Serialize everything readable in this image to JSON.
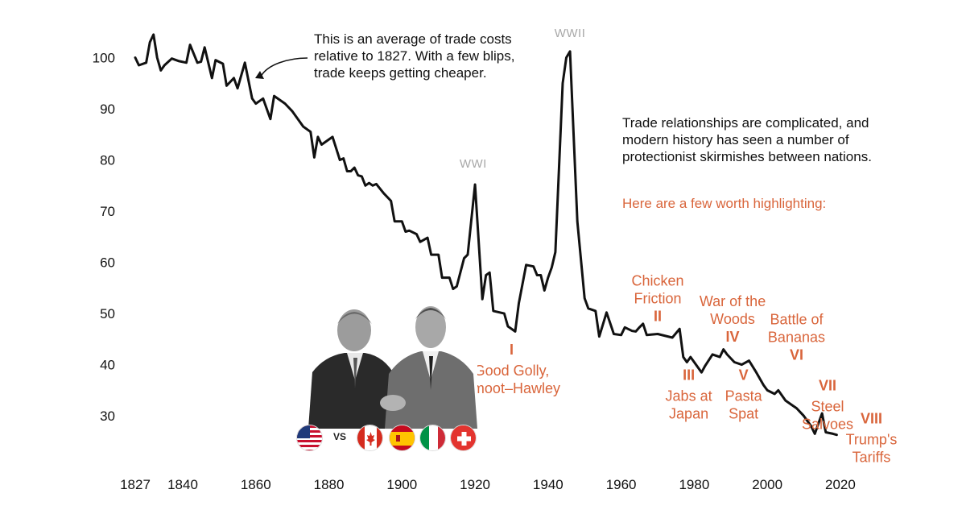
{
  "chart_data": {
    "type": "line",
    "x_ticks": [
      1827,
      1840,
      1860,
      1880,
      1900,
      1920,
      1940,
      1960,
      1980,
      2000,
      2020
    ],
    "y_ticks": [
      30,
      40,
      50,
      60,
      70,
      80,
      90,
      100
    ],
    "xlim": [
      1827,
      2022
    ],
    "ylim": [
      22,
      107
    ],
    "grid": false,
    "series": [
      {
        "values": [
          [
            1827,
            100
          ],
          [
            1828,
            98.5
          ],
          [
            1830,
            99
          ],
          [
            1831,
            103
          ],
          [
            1832,
            104.5
          ],
          [
            1833,
            100
          ],
          [
            1834,
            97.5
          ],
          [
            1835,
            98.5
          ],
          [
            1837,
            99.8
          ],
          [
            1839,
            99.3
          ],
          [
            1841,
            99
          ],
          [
            1842,
            102.5
          ],
          [
            1844,
            99
          ],
          [
            1845,
            99.2
          ],
          [
            1846,
            102
          ],
          [
            1848,
            96
          ],
          [
            1849,
            99.5
          ],
          [
            1851,
            98.8
          ],
          [
            1852,
            94.5
          ],
          [
            1854,
            96
          ],
          [
            1855,
            94
          ],
          [
            1857,
            99
          ],
          [
            1859,
            92
          ],
          [
            1860,
            91
          ],
          [
            1862,
            92
          ],
          [
            1864,
            88
          ],
          [
            1865,
            92.5
          ],
          [
            1868,
            91
          ],
          [
            1870,
            89.5
          ],
          [
            1873,
            86.5
          ],
          [
            1875,
            85.5
          ],
          [
            1876,
            80.5
          ],
          [
            1877,
            84.5
          ],
          [
            1878,
            83
          ],
          [
            1880,
            84
          ],
          [
            1881,
            84.5
          ],
          [
            1883,
            80
          ],
          [
            1884,
            80.3
          ],
          [
            1885,
            77.8
          ],
          [
            1886,
            77.8
          ],
          [
            1887,
            78.5
          ],
          [
            1888,
            77
          ],
          [
            1889,
            76.8
          ],
          [
            1890,
            75
          ],
          [
            1891,
            75.5
          ],
          [
            1892,
            75
          ],
          [
            1893,
            75.3
          ],
          [
            1895,
            73.5
          ],
          [
            1897,
            72
          ],
          [
            1898,
            68
          ],
          [
            1900,
            68
          ],
          [
            1901,
            66
          ],
          [
            1902,
            66.2
          ],
          [
            1904,
            65.5
          ],
          [
            1905,
            64
          ],
          [
            1907,
            64.8
          ],
          [
            1908,
            61.5
          ],
          [
            1910,
            61.5
          ],
          [
            1911,
            57
          ],
          [
            1913,
            57
          ],
          [
            1914,
            54.8
          ],
          [
            1915,
            55.3
          ],
          [
            1917,
            60.8
          ],
          [
            1918,
            61.5
          ],
          [
            1920,
            75.2
          ],
          [
            1922,
            52.8
          ],
          [
            1923,
            57.5
          ],
          [
            1924,
            58
          ],
          [
            1925,
            50.5
          ],
          [
            1928,
            50
          ],
          [
            1929,
            47.5
          ],
          [
            1931,
            46.5
          ],
          [
            1932,
            52
          ],
          [
            1934,
            59.5
          ],
          [
            1936,
            59.2
          ],
          [
            1937,
            57.5
          ],
          [
            1938,
            57.5
          ],
          [
            1939,
            54.5
          ],
          [
            1940,
            57
          ],
          [
            1941,
            59
          ],
          [
            1942,
            62
          ],
          [
            1944,
            95
          ],
          [
            1945,
            100
          ],
          [
            1946,
            101.2
          ],
          [
            1948,
            68
          ],
          [
            1950,
            53
          ],
          [
            1951,
            51
          ],
          [
            1953,
            50.5
          ],
          [
            1954,
            45.5
          ],
          [
            1956,
            50.2
          ],
          [
            1958,
            46
          ],
          [
            1960,
            45.8
          ],
          [
            1961,
            47.3
          ],
          [
            1963,
            46.6
          ],
          [
            1964,
            46.5
          ],
          [
            1965,
            47.3
          ],
          [
            1966,
            48
          ],
          [
            1967,
            45.8
          ],
          [
            1970,
            46
          ],
          [
            1974,
            45.3
          ],
          [
            1976,
            47
          ],
          [
            1977,
            41.5
          ],
          [
            1978,
            40.5
          ],
          [
            1979,
            41.5
          ],
          [
            1980,
            40.5
          ],
          [
            1982,
            38.5
          ],
          [
            1983,
            39.8
          ],
          [
            1985,
            42
          ],
          [
            1987,
            41.5
          ],
          [
            1988,
            43
          ],
          [
            1989,
            42
          ],
          [
            1991,
            40.5
          ],
          [
            1993,
            40
          ],
          [
            1995,
            40.8
          ],
          [
            1997,
            38.5
          ],
          [
            1999,
            36
          ],
          [
            2000,
            35
          ],
          [
            2002,
            34.3
          ],
          [
            2003,
            35
          ],
          [
            2005,
            33
          ],
          [
            2007,
            32
          ],
          [
            2008,
            31.5
          ],
          [
            2010,
            30
          ],
          [
            2012,
            28
          ],
          [
            2013,
            26.5
          ],
          [
            2015,
            30.5
          ],
          [
            2016,
            26.8
          ],
          [
            2018,
            26.5
          ],
          [
            2019,
            26.3
          ]
        ]
      }
    ],
    "war_labels": [
      {
        "label": "WWI",
        "x": 1919.5,
        "y": 78.5
      },
      {
        "label": "WWII",
        "x": 1946,
        "y": 104
      }
    ],
    "events": [
      {
        "numeral": "I",
        "text": [
          "Good Golly,",
          "Smoot–Hawley"
        ],
        "x": 1930,
        "y": 42
      },
      {
        "numeral": "II",
        "text": [
          "Chicken",
          "Friction"
        ],
        "x": 1970,
        "y": 48.5
      },
      {
        "numeral": "III",
        "text": [
          "Jabs at",
          "Japan"
        ],
        "x": 1978.5,
        "y": 37
      },
      {
        "numeral": "IV",
        "text": [
          "War of the",
          "Woods"
        ],
        "x": 1990.5,
        "y": 44.5
      },
      {
        "numeral": "V",
        "text": [
          "Pasta",
          "Spat"
        ],
        "x": 1993.5,
        "y": 37
      },
      {
        "numeral": "VI",
        "text": [
          "Battle of",
          "Bananas"
        ],
        "x": 2008,
        "y": 41
      },
      {
        "numeral": "VII",
        "text": [
          "Steel",
          "Salvoes"
        ],
        "x": 2016.5,
        "y": 35
      },
      {
        "numeral": "VIII",
        "text": [
          "Trump's",
          "Tariffs"
        ],
        "x": 2028.5,
        "y": 28.5
      }
    ]
  },
  "notes": {
    "average": "This is an average of trade costs relative to 1827. With a few blips, trade keeps getting cheaper.",
    "relations": "Trade relationships are complicated, and modern history has seen a number of protectionist skirmishes between nations.",
    "highlight": "Here are a few worth highlighting:"
  },
  "colors": {
    "line": "#111111",
    "accent": "#d9653b",
    "war_label": "#a8a8a8"
  },
  "flags": {
    "vs": "VS",
    "items": [
      "us-flag-icon",
      "canada-flag-icon",
      "spain-flag-icon",
      "italy-flag-icon",
      "switzerland-flag-icon"
    ]
  }
}
